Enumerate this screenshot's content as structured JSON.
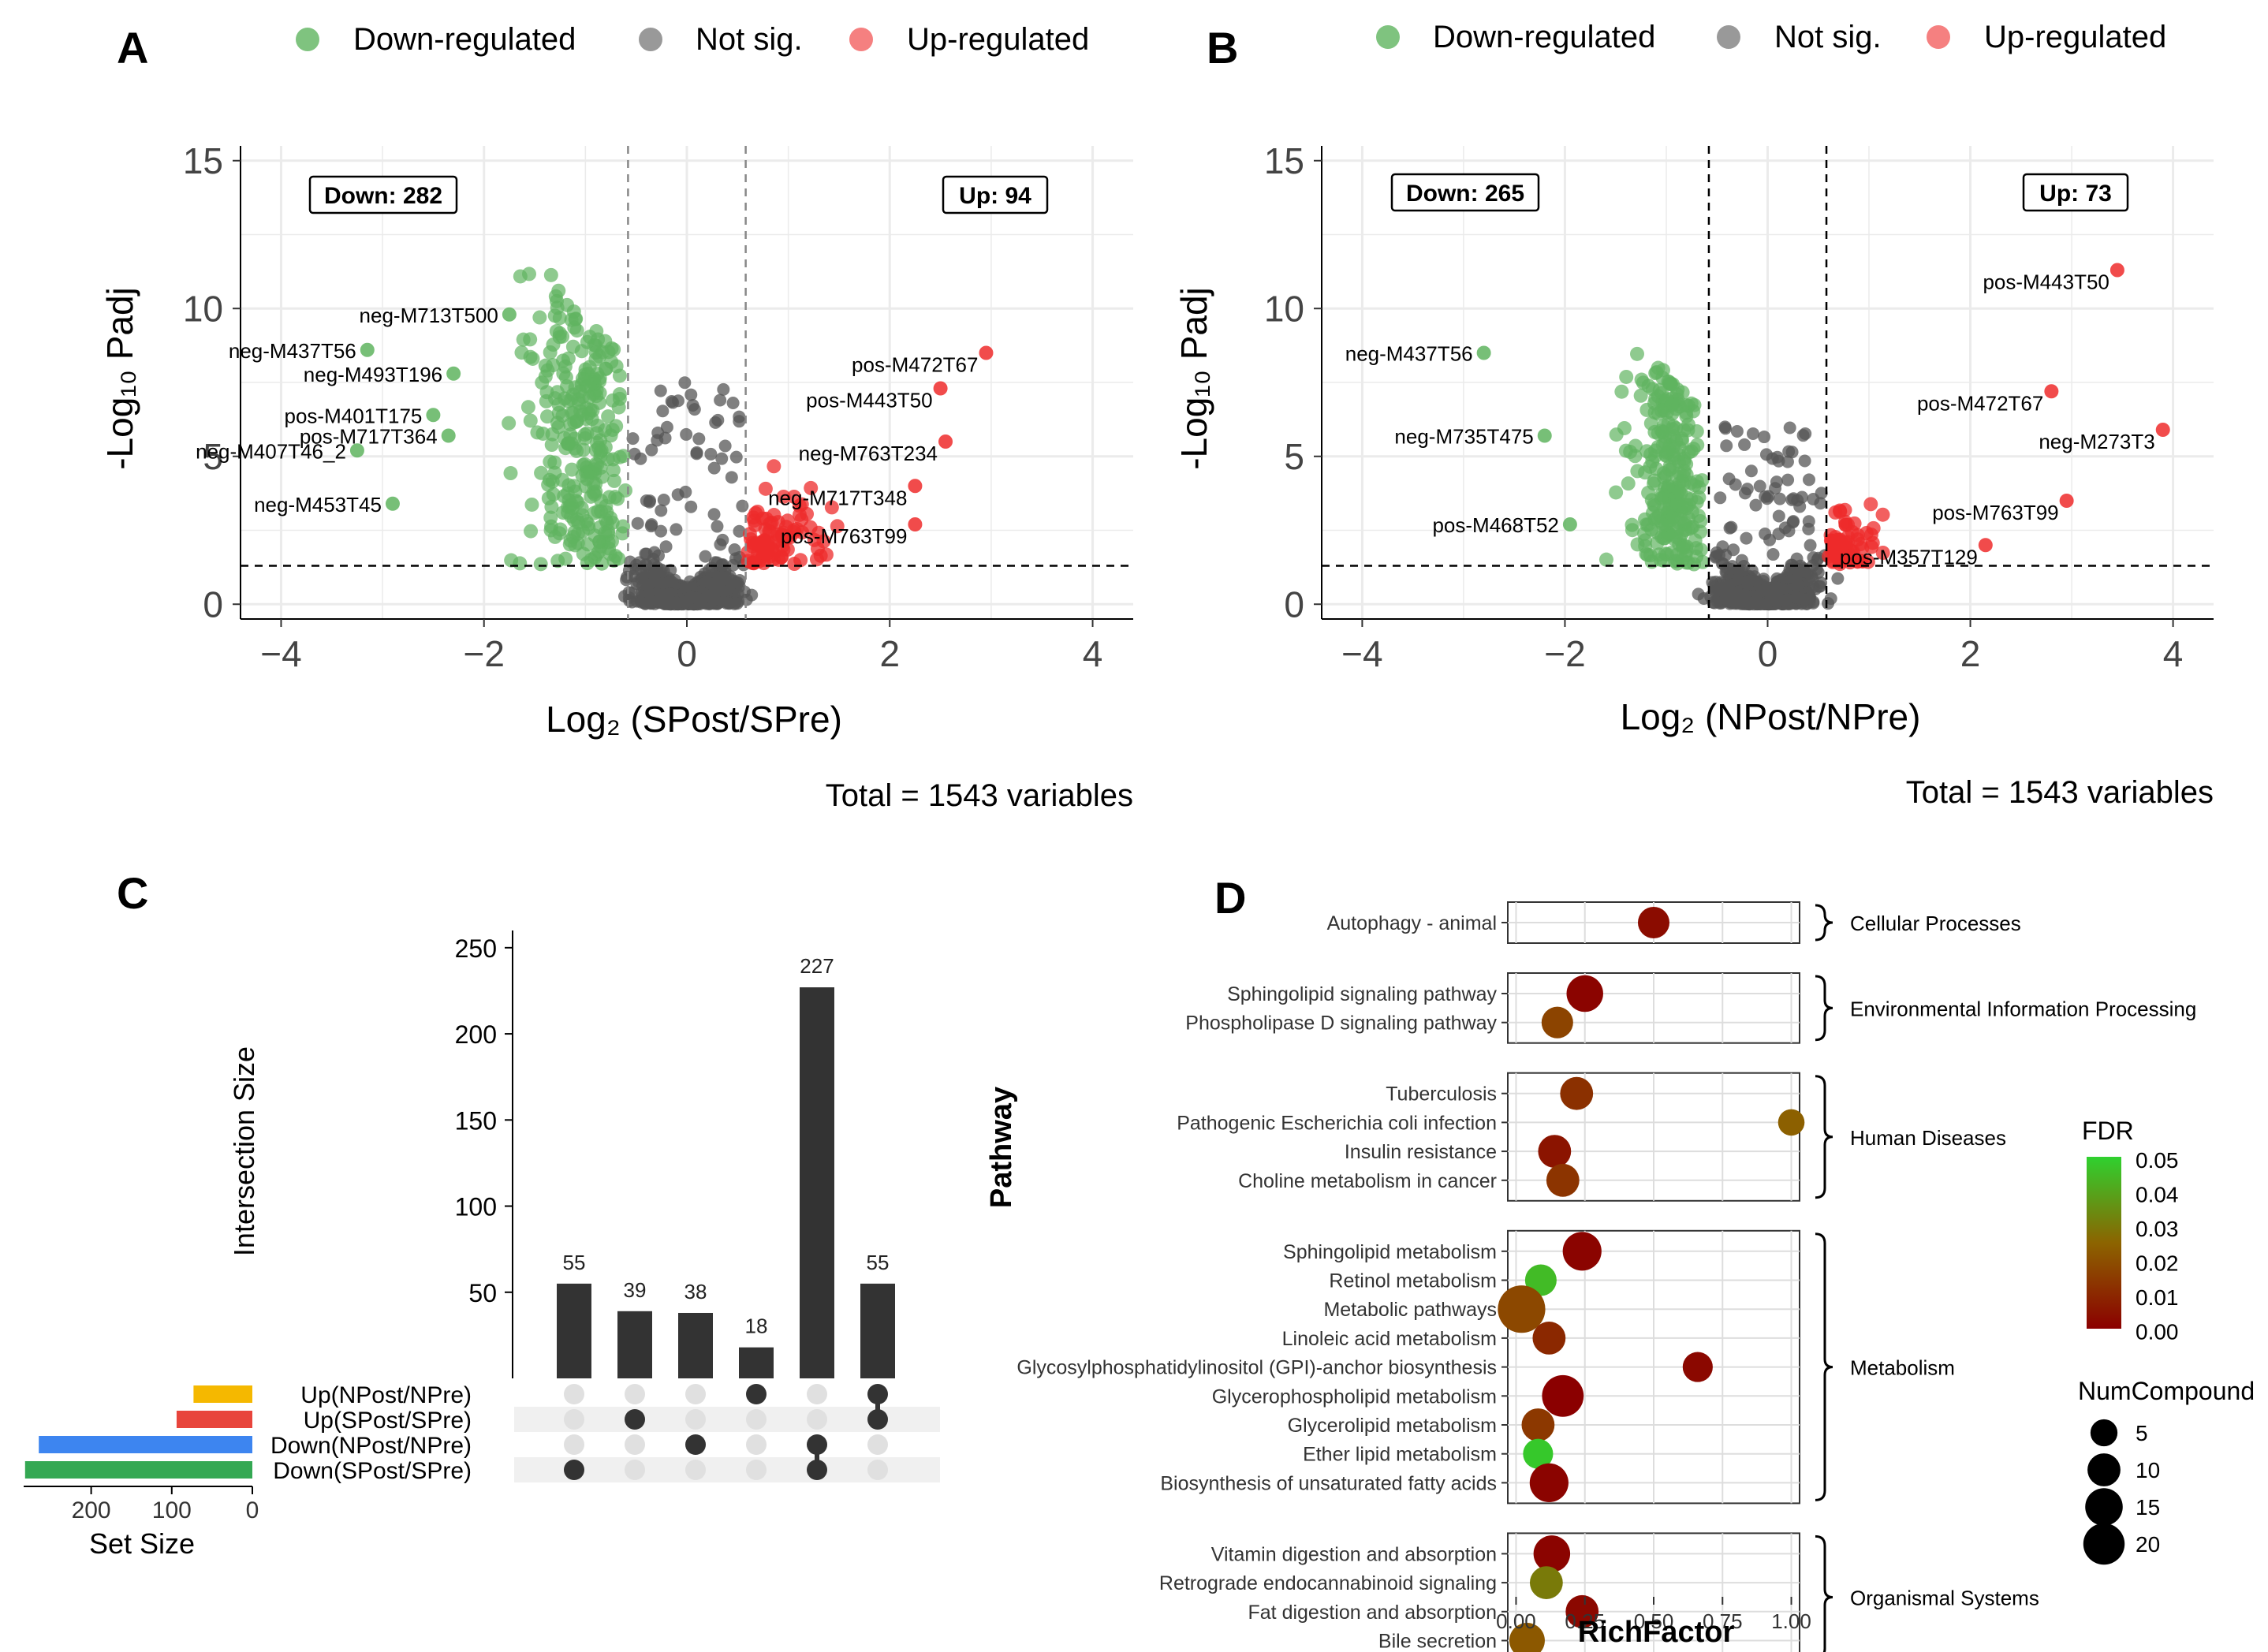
{
  "colors": {
    "down": "#5fb45f",
    "notsig": "#555555",
    "up": "#ee2b2b",
    "grid": "#ebebeb",
    "upset_bar": "#333333",
    "set_up_npost": "#f5b800",
    "set_up_spost": "#e8453c",
    "set_down_npost": "#3d85f0",
    "set_down_spost": "#34a853",
    "fdr_high": "#2fd12f",
    "fdr_low": "#8b0000"
  },
  "panels": {
    "a": {
      "letter": "A",
      "legend": [
        "Down-regulated",
        "Not sig.",
        "Up-regulated"
      ],
      "xlabel": "Log₂ (SPost/SPre)",
      "ylabel": "-Log₁₀ Padj",
      "total": "Total = 1543 variables",
      "down_box": "Down: 282",
      "up_box": "Up: 94"
    },
    "b": {
      "letter": "B",
      "legend": [
        "Down-regulated",
        "Not sig.",
        "Up-regulated"
      ],
      "xlabel": "Log₂ (NPost/NPre)",
      "ylabel": "-Log₁₀ Padj",
      "total": "Total = 1543 variables",
      "down_box": "Down: 265",
      "up_box": "Up: 73"
    },
    "c": {
      "letter": "C",
      "ylabel": "Intersection Size",
      "set_size_label": "Set Size"
    },
    "d": {
      "letter": "D",
      "ylabel": "Pathway",
      "xlabel": "RichFactor",
      "fdr_title": "FDR",
      "size_title": "NumCompound"
    }
  },
  "chart_data": [
    {
      "panel": "A",
      "type": "scatter",
      "title": "",
      "xlabel": "Log₂ (SPost/SPre)",
      "ylabel": "-Log₁₀ Padj",
      "xlim": [
        -4.4,
        4.4
      ],
      "ylim": [
        -0.5,
        15.5
      ],
      "xticks": [
        -4,
        -2,
        0,
        2,
        4
      ],
      "yticks": [
        0,
        5,
        10,
        15
      ],
      "fc_threshold": 0.58,
      "p_threshold": 1.3,
      "counts": {
        "down": 282,
        "up": 94,
        "total": 1543
      },
      "labeled_points": [
        {
          "label": "neg-M713T500",
          "x": -1.75,
          "y": 9.8
        },
        {
          "label": "neg-M437T56",
          "x": -3.15,
          "y": 8.6
        },
        {
          "label": "neg-M493T196",
          "x": -2.3,
          "y": 7.8
        },
        {
          "label": "pos-M401T175",
          "x": -2.5,
          "y": 6.4
        },
        {
          "label": "pos-M717T364",
          "x": -2.35,
          "y": 5.7
        },
        {
          "label": "neg-M407T46_2",
          "x": -3.25,
          "y": 5.2
        },
        {
          "label": "neg-M453T45",
          "x": -2.9,
          "y": 3.4
        },
        {
          "label": "pos-M472T67",
          "x": 2.95,
          "y": 8.5
        },
        {
          "label": "pos-M443T50",
          "x": 2.5,
          "y": 7.3
        },
        {
          "label": "neg-M763T234",
          "x": 2.55,
          "y": 5.5
        },
        {
          "label": "neg-M717T348",
          "x": 2.25,
          "y": 4.0
        },
        {
          "label": "pos-M763T99",
          "x": 2.25,
          "y": 2.7
        }
      ]
    },
    {
      "panel": "B",
      "type": "scatter",
      "title": "",
      "xlabel": "Log₂ (NPost/NPre)",
      "ylabel": "-Log₁₀ Padj",
      "xlim": [
        -4.4,
        4.4
      ],
      "ylim": [
        -0.5,
        15.5
      ],
      "xticks": [
        -4,
        -2,
        0,
        2,
        4
      ],
      "yticks": [
        0,
        5,
        10,
        15
      ],
      "fc_threshold": 0.58,
      "p_threshold": 1.3,
      "counts": {
        "down": 265,
        "up": 73,
        "total": 1543
      },
      "labeled_points": [
        {
          "label": "neg-M437T56",
          "x": -2.8,
          "y": 8.5
        },
        {
          "label": "neg-M735T475",
          "x": -2.2,
          "y": 5.7
        },
        {
          "label": "pos-M468T52",
          "x": -1.95,
          "y": 2.7
        },
        {
          "label": "pos-M443T50",
          "x": 3.45,
          "y": 11.3
        },
        {
          "label": "pos-M472T67",
          "x": 2.8,
          "y": 7.2
        },
        {
          "label": "neg-M273T3",
          "x": 3.9,
          "y": 5.9
        },
        {
          "label": "pos-M763T99",
          "x": 2.95,
          "y": 3.5
        },
        {
          "label": "pos-M357T129",
          "x": 2.15,
          "y": 2.0
        }
      ]
    },
    {
      "panel": "C",
      "type": "bar",
      "title": "",
      "ylabel": "Intersection Size",
      "yticks": [
        50,
        100,
        150,
        200,
        250
      ],
      "ylim": [
        0,
        260
      ],
      "values": [
        55,
        39,
        38,
        18,
        227,
        55
      ],
      "sets": [
        "Up(NPost/NPre)",
        "Up(SPost/SPre)",
        "Down(NPost/NPre)",
        "Down(SPost/SPre)"
      ],
      "set_sizes": [
        73,
        94,
        265,
        282
      ],
      "set_size_ticks": [
        200,
        100,
        0
      ],
      "membership": [
        [
          3
        ],
        [
          1
        ],
        [
          2
        ],
        [
          0
        ],
        [
          2,
          3
        ],
        [
          0,
          1
        ]
      ]
    },
    {
      "panel": "D",
      "type": "scatter",
      "title": "",
      "xlabel": "RichFactor",
      "ylabel": "Pathway",
      "xlim": [
        -0.03,
        1.03
      ],
      "xticks": [
        "0.00",
        "0.25",
        "0.50",
        "0.75",
        "1.00"
      ],
      "fdr_ticks": [
        "0.05",
        "0.04",
        "0.03",
        "0.02",
        "0.01",
        "0.00"
      ],
      "size_ticks": [
        5,
        10,
        15,
        20
      ],
      "groups": [
        {
          "name": "Cellular Processes",
          "items": [
            {
              "pathway": "Autophagy - animal",
              "rich": 0.5,
              "fdr": 0.003,
              "n": 6
            }
          ]
        },
        {
          "name": "Environmental Information Processing",
          "items": [
            {
              "pathway": "Sphingolipid signaling pathway",
              "rich": 0.25,
              "fdr": 0.001,
              "n": 10
            },
            {
              "pathway": "Phospholipase D signaling pathway",
              "rich": 0.15,
              "fdr": 0.017,
              "n": 6
            }
          ]
        },
        {
          "name": "Human Diseases",
          "items": [
            {
              "pathway": "Tuberculosis",
              "rich": 0.22,
              "fdr": 0.012,
              "n": 7
            },
            {
              "pathway": "Pathogenic Escherichia coli infection",
              "rich": 1.0,
              "fdr": 0.024,
              "n": 3
            },
            {
              "pathway": "Insulin resistance",
              "rich": 0.14,
              "fdr": 0.005,
              "n": 7
            },
            {
              "pathway": "Choline metabolism in cancer",
              "rich": 0.17,
              "fdr": 0.013,
              "n": 7
            }
          ]
        },
        {
          "name": "Metabolism",
          "items": [
            {
              "pathway": "Sphingolipid metabolism",
              "rich": 0.24,
              "fdr": 0.001,
              "n": 12
            },
            {
              "pathway": "Retinol metabolism",
              "rich": 0.09,
              "fdr": 0.045,
              "n": 6
            },
            {
              "pathway": "Metabolic pathways",
              "rich": 0.02,
              "fdr": 0.018,
              "n": 22
            },
            {
              "pathway": "Linoleic acid metabolism",
              "rich": 0.12,
              "fdr": 0.01,
              "n": 7
            },
            {
              "pathway": "Glycosylphosphatidylinositol (GPI)-anchor biosynthesis",
              "rich": 0.66,
              "fdr": 0.002,
              "n": 5
            },
            {
              "pathway": "Glycerophospholipid metabolism",
              "rich": 0.17,
              "fdr": 0.0,
              "n": 15
            },
            {
              "pathway": "Glycerolipid metabolism",
              "rich": 0.08,
              "fdr": 0.014,
              "n": 7
            },
            {
              "pathway": "Ether lipid metabolism",
              "rich": 0.08,
              "fdr": 0.048,
              "n": 5
            },
            {
              "pathway": "Biosynthesis of unsaturated fatty acids",
              "rich": 0.12,
              "fdr": 0.001,
              "n": 12
            }
          ]
        },
        {
          "name": "Organismal Systems",
          "items": [
            {
              "pathway": "Vitamin digestion and absorption",
              "rich": 0.13,
              "fdr": 0.001,
              "n": 10
            },
            {
              "pathway": "Retrograde endocannabinoid signaling",
              "rich": 0.11,
              "fdr": 0.03,
              "n": 7
            },
            {
              "pathway": "Fat digestion and absorption",
              "rich": 0.24,
              "fdr": 0.002,
              "n": 7
            },
            {
              "pathway": "Bile secretion",
              "rich": 0.04,
              "fdr": 0.022,
              "n": 9
            }
          ]
        }
      ]
    }
  ]
}
